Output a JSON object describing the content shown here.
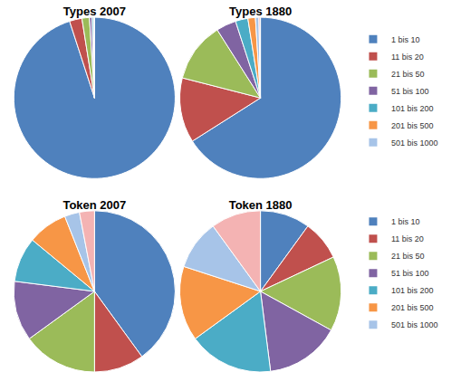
{
  "chart_data": [
    {
      "type": "pie",
      "title": "Types 2007",
      "categories": [
        "1 bis 10",
        "11 bis 20",
        "21 bis 50",
        "51 bis 100",
        "101 bis 200",
        "201 bis 500",
        "501 bis 1000",
        null
      ],
      "values": [
        95,
        2.5,
        1.5,
        0.5,
        0.3,
        0.1,
        0.05,
        0.05
      ],
      "colors": [
        "#4f81bd",
        "#c0504d",
        "#9bbb59",
        "#8064a2",
        "#4bacc6",
        "#f79646",
        "#a7c4e8",
        "#f4b3b3"
      ]
    },
    {
      "type": "pie",
      "title": "Types 1880",
      "categories": [
        "1 bis 10",
        "11 bis 20",
        "21 bis 50",
        "51 bis 100",
        "101 bis 200",
        "201 bis 500",
        "501 bis 1000",
        null
      ],
      "values": [
        66,
        13,
        12,
        4,
        2.5,
        1.5,
        0.7,
        0.3
      ],
      "colors": [
        "#4f81bd",
        "#c0504d",
        "#9bbb59",
        "#8064a2",
        "#4bacc6",
        "#f79646",
        "#a7c4e8",
        "#f4b3b3"
      ],
      "legend": "right"
    },
    {
      "type": "pie",
      "title": "Token 2007",
      "categories": [
        "1 bis 10",
        "11 bis 20",
        "21 bis 50",
        "51 bis 100",
        "101 bis 200",
        "201 bis 500",
        "501 bis 1000",
        null
      ],
      "values": [
        40,
        10,
        15,
        12,
        9,
        8,
        3,
        3
      ],
      "colors": [
        "#4f81bd",
        "#c0504d",
        "#9bbb59",
        "#8064a2",
        "#4bacc6",
        "#f79646",
        "#a7c4e8",
        "#f4b3b3"
      ]
    },
    {
      "type": "pie",
      "title": "Token 1880",
      "categories": [
        "1 bis 10",
        "11 bis 20",
        "21 bis 50",
        "51 bis 100",
        "101 bis 200",
        "201 bis 500",
        "501 bis 1000",
        null
      ],
      "values": [
        10,
        8,
        15,
        15,
        17,
        15,
        10,
        10
      ],
      "colors": [
        "#4f81bd",
        "#c0504d",
        "#9bbb59",
        "#8064a2",
        "#4bacc6",
        "#f79646",
        "#a7c4e8",
        "#f4b3b3"
      ],
      "legend": "right"
    }
  ]
}
